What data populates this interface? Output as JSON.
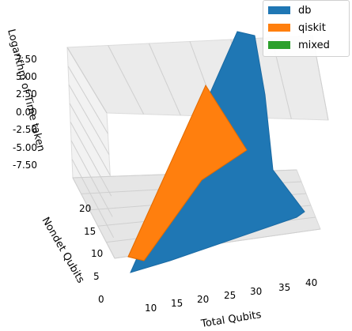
{
  "chart_data": {
    "type": "surface3d",
    "xlabel": "Total Qubits",
    "ylabel": "Nondet Qubits",
    "zlabel": "Logarithm of Time taken",
    "x_ticks": [
      "10",
      "15",
      "20",
      "25",
      "30",
      "35",
      "40"
    ],
    "y_ticks": [
      "0",
      "5",
      "10",
      "15",
      "20"
    ],
    "z_ticks": [
      "-7.50",
      "-5.00",
      "-2.50",
      "0.00",
      "2.50",
      "5.00",
      "7.50"
    ],
    "xlim": [
      5,
      42
    ],
    "ylim": [
      0,
      22
    ],
    "zlim": [
      -8.5,
      9
    ],
    "grid": true,
    "legend_position": "top-right",
    "series": [
      {
        "name": "db",
        "color": "#1f77b4",
        "edge_color": "#17608f",
        "surface": [
          {
            "x": 6,
            "y": 0,
            "z": -7.5
          },
          {
            "x": 42,
            "y": 0,
            "z": -1.0
          },
          {
            "x": 42,
            "y": 22,
            "z": 9.0
          },
          {
            "x": 6,
            "y": 22,
            "z": -4.5
          }
        ]
      },
      {
        "name": "qiskit",
        "color": "#ff7f0e",
        "edge_color": "#c45c00",
        "surface": [
          {
            "x": 6,
            "y": 0,
            "z": -7.0
          },
          {
            "x": 28,
            "y": 0,
            "z": -4.0
          },
          {
            "x": 28,
            "y": 22,
            "z": 6.5
          },
          {
            "x": 6,
            "y": 22,
            "z": -5.0
          }
        ]
      },
      {
        "name": "mixed",
        "color": "#2ca02c",
        "surface": []
      }
    ]
  }
}
